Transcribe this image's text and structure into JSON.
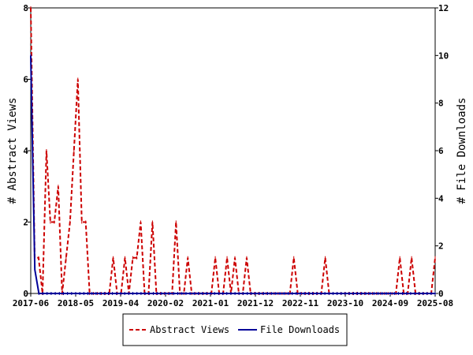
{
  "chart_data": {
    "type": "line",
    "x_tick_labels": [
      "2017-06",
      "2018-05",
      "2019-04",
      "2020-02",
      "2021-01",
      "2021-12",
      "2022-11",
      "2023-10",
      "2024-09",
      "2025-08"
    ],
    "ylabel_left": "# Abstract Views",
    "ylabel_right": "# File Downloads",
    "ylim_left": [
      0,
      8
    ],
    "ylim_right": [
      0,
      12
    ],
    "yticks_left": [
      0,
      2,
      4,
      6,
      8
    ],
    "yticks_right": [
      0,
      2,
      4,
      6,
      8,
      10,
      12
    ],
    "grid": false,
    "legend_position": "bottom",
    "series": [
      {
        "name": "Abstract Views",
        "axis": "left",
        "color": "#cc0000",
        "style": "dashed",
        "values": [
          8,
          1,
          1,
          0,
          4,
          2,
          2,
          3,
          0,
          1,
          2,
          4,
          6,
          2,
          2,
          0,
          0,
          0,
          0,
          0,
          0,
          1,
          0,
          0,
          1,
          0,
          1,
          1,
          2,
          0,
          0,
          2,
          0,
          0,
          0,
          0,
          0,
          2,
          0,
          0,
          1,
          0,
          0,
          0,
          0,
          0,
          0,
          1,
          0,
          0,
          1,
          0,
          1,
          0,
          0,
          1,
          0,
          0,
          0,
          0,
          0,
          0,
          0,
          0,
          0,
          0,
          0,
          1,
          0,
          0,
          0,
          0,
          0,
          0,
          0,
          1,
          0,
          0,
          0,
          0,
          0,
          0,
          0,
          0,
          0,
          0,
          0,
          0,
          0,
          0,
          0,
          0,
          0,
          0,
          1,
          0,
          0,
          1,
          0,
          0,
          0,
          0,
          0,
          1
        ]
      },
      {
        "name": "File Downloads",
        "axis": "right",
        "color": "#000099",
        "style": "solid",
        "values": [
          10,
          1,
          0,
          0,
          0,
          0,
          0,
          0,
          0,
          0,
          0,
          0,
          0,
          0,
          0,
          0,
          0,
          0,
          0,
          0,
          0,
          0,
          0,
          0,
          0,
          0,
          0,
          0,
          0,
          0,
          0,
          0,
          0,
          0,
          0,
          0,
          0,
          0,
          0,
          0,
          0,
          0,
          0,
          0,
          0,
          0,
          0,
          0,
          0,
          0,
          0,
          0,
          0,
          0,
          0,
          0,
          0,
          0,
          0,
          0,
          0,
          0,
          0,
          0,
          0,
          0,
          0,
          0,
          0,
          0,
          0,
          0,
          0,
          0,
          0,
          0,
          0,
          0,
          0,
          0,
          0,
          0,
          0,
          0,
          0,
          0,
          0,
          0,
          0,
          0,
          0,
          0,
          0,
          0,
          0,
          0,
          0,
          0,
          0,
          0
        ]
      }
    ]
  },
  "legend": {
    "abstract_views": "Abstract Views",
    "file_downloads": "File Downloads"
  }
}
